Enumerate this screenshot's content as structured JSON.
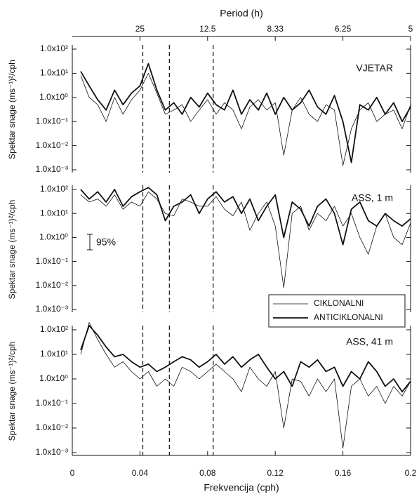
{
  "chart_data": [
    {
      "type": "line",
      "annotation": "VJETAR",
      "log_y": true,
      "ylabel": "Spektar snage (ms⁻¹)²/cph",
      "x2label": "Period (h)",
      "x2ticks": [
        {
          "value": 0.04,
          "label": "25"
        },
        {
          "value": 0.08,
          "label": "12.5"
        },
        {
          "value": 0.12,
          "label": "8.33"
        },
        {
          "value": 0.16,
          "label": "6.25"
        },
        {
          "value": 0.2,
          "label": "5"
        }
      ],
      "xlim": [
        0,
        0.2
      ],
      "ylim": [
        0.001,
        100
      ],
      "yticks": [
        {
          "value": 100,
          "label": "1.0x10²"
        },
        {
          "value": 10,
          "label": "1.0x10¹"
        },
        {
          "value": 1,
          "label": "1.0x10⁰"
        },
        {
          "value": 0.1,
          "label": "1.0x10⁻¹"
        },
        {
          "value": 0.01,
          "label": "1.0x10⁻²"
        },
        {
          "value": 0.001,
          "label": "1.0x10⁻³"
        }
      ],
      "vlines": [
        0.0417,
        0.0574,
        0.0833
      ],
      "x": [
        0.005,
        0.01,
        0.015,
        0.02,
        0.025,
        0.03,
        0.035,
        0.04,
        0.045,
        0.05,
        0.055,
        0.06,
        0.065,
        0.07,
        0.075,
        0.08,
        0.085,
        0.09,
        0.095,
        0.1,
        0.105,
        0.11,
        0.115,
        0.12,
        0.125,
        0.13,
        0.135,
        0.14,
        0.145,
        0.15,
        0.155,
        0.16,
        0.165,
        0.17,
        0.175,
        0.18,
        0.185,
        0.19,
        0.195,
        0.2
      ],
      "series": [
        {
          "color": "#111",
          "width": 0.8,
          "values": [
            8,
            1,
            0.5,
            0.1,
            1,
            0.2,
            0.8,
            2,
            10,
            1.5,
            0.2,
            0.3,
            0.5,
            0.1,
            0.3,
            0.8,
            0.2,
            0.6,
            0.3,
            0.05,
            0.4,
            0.8,
            0.3,
            0.6,
            0.004,
            0.3,
            1,
            0.2,
            0.1,
            0.5,
            0.3,
            0.0015,
            0.05,
            0.3,
            0.6,
            0.1,
            0.2,
            0.3,
            0.05,
            0.5
          ]
        },
        {
          "color": "#111",
          "width": 1.8,
          "values": [
            12,
            3,
            0.8,
            0.3,
            2,
            0.5,
            1.5,
            3,
            25,
            2,
            0.3,
            0.6,
            0.2,
            1,
            0.4,
            1.5,
            0.5,
            0.3,
            2,
            0.2,
            0.8,
            0.3,
            1.5,
            0.2,
            1,
            0.3,
            0.6,
            2,
            0.4,
            0.2,
            1.2,
            0.1,
            0.002,
            0.5,
            0.3,
            1,
            0.2,
            0.6,
            0.1,
            0.4
          ]
        }
      ]
    },
    {
      "type": "line",
      "annotation": "ASS, 1 m",
      "log_y": true,
      "ylabel": "Spektar snage (ms⁻¹)²/cph",
      "confidence_label": "95%",
      "legend": "lower right",
      "xlim": [
        0,
        0.2
      ],
      "ylim": [
        0.001,
        100
      ],
      "yticks": [
        {
          "value": 100,
          "label": "1.0x10²"
        },
        {
          "value": 10,
          "label": "1.0x10¹"
        },
        {
          "value": 1,
          "label": "1.0x10⁰"
        },
        {
          "value": 0.1,
          "label": "1.0x10⁻¹"
        },
        {
          "value": 0.01,
          "label": "1.0x10⁻²"
        },
        {
          "value": 0.001,
          "label": "1.0x10⁻³"
        }
      ],
      "vlines": [
        0.0417,
        0.0574,
        0.0833
      ],
      "x": [
        0.005,
        0.01,
        0.015,
        0.02,
        0.025,
        0.03,
        0.035,
        0.04,
        0.045,
        0.05,
        0.055,
        0.06,
        0.065,
        0.07,
        0.075,
        0.08,
        0.085,
        0.09,
        0.095,
        0.1,
        0.105,
        0.11,
        0.115,
        0.12,
        0.125,
        0.13,
        0.135,
        0.14,
        0.145,
        0.15,
        0.155,
        0.16,
        0.165,
        0.17,
        0.175,
        0.18,
        0.185,
        0.19,
        0.195,
        0.2
      ],
      "series": [
        {
          "name": "CIKLONALNI",
          "color": "#111",
          "width": 0.8,
          "values": [
            60,
            30,
            40,
            20,
            60,
            15,
            30,
            20,
            80,
            40,
            10,
            8,
            40,
            30,
            20,
            20,
            50,
            15,
            8,
            30,
            2,
            10,
            30,
            3,
            0.008,
            10,
            20,
            2,
            10,
            5,
            20,
            3,
            10,
            1,
            0.2,
            3,
            10,
            1,
            0.5,
            4
          ]
        },
        {
          "name": "ANTICIKLONALNI",
          "color": "#111",
          "width": 1.8,
          "values": [
            100,
            40,
            80,
            30,
            100,
            20,
            50,
            80,
            120,
            60,
            5,
            20,
            30,
            60,
            10,
            40,
            80,
            30,
            50,
            10,
            40,
            5,
            20,
            60,
            1,
            30,
            15,
            3,
            20,
            40,
            10,
            0.5,
            15,
            30,
            5,
            3,
            10,
            5,
            3,
            6
          ]
        }
      ]
    },
    {
      "type": "line",
      "annotation": "ASS, 41 m",
      "log_y": true,
      "ylabel": "Spektar snage (ms⁻¹)²/cph",
      "xlabel": "Frekvencija (cph)",
      "xlim": [
        0,
        0.2
      ],
      "xticks": [
        0,
        0.04,
        0.08,
        0.12,
        0.16,
        0.2
      ],
      "ylim": [
        0.001,
        100
      ],
      "yticks": [
        {
          "value": 100,
          "label": "1.0x10²"
        },
        {
          "value": 10,
          "label": "1.0x10¹"
        },
        {
          "value": 1,
          "label": "1.0x10⁰"
        },
        {
          "value": 0.1,
          "label": "1.0x10⁻¹"
        },
        {
          "value": 0.01,
          "label": "1.0x10⁻²"
        },
        {
          "value": 0.001,
          "label": "1.0x10⁻³"
        }
      ],
      "vlines": [
        0.0417,
        0.0574,
        0.0833
      ],
      "x": [
        0.005,
        0.01,
        0.015,
        0.02,
        0.025,
        0.03,
        0.035,
        0.04,
        0.045,
        0.05,
        0.055,
        0.06,
        0.065,
        0.07,
        0.075,
        0.08,
        0.085,
        0.09,
        0.095,
        0.1,
        0.105,
        0.11,
        0.115,
        0.12,
        0.125,
        0.13,
        0.135,
        0.14,
        0.145,
        0.15,
        0.155,
        0.16,
        0.165,
        0.17,
        0.175,
        0.18,
        0.185,
        0.19,
        0.195,
        0.2
      ],
      "series": [
        {
          "color": "#111",
          "width": 0.8,
          "values": [
            10,
            200,
            40,
            10,
            3,
            5,
            2,
            1,
            2,
            0.5,
            1,
            0.5,
            3,
            2,
            1,
            2,
            4,
            2,
            1,
            0.3,
            3,
            1,
            0.5,
            2,
            0.01,
            1,
            0.8,
            0.2,
            1,
            0.3,
            1,
            0.0015,
            0.5,
            1,
            0.2,
            0.5,
            0.1,
            0.5,
            0.2,
            0.8
          ]
        },
        {
          "color": "#111",
          "width": 1.8,
          "values": [
            15,
            150,
            60,
            20,
            8,
            10,
            5,
            3,
            4,
            2,
            3,
            5,
            8,
            6,
            3,
            5,
            10,
            4,
            8,
            3,
            6,
            10,
            3,
            1,
            2,
            0.5,
            5,
            3,
            6,
            2,
            3,
            0.5,
            2,
            1,
            5,
            2,
            0.5,
            1,
            0.3,
            0.8
          ]
        }
      ]
    }
  ]
}
